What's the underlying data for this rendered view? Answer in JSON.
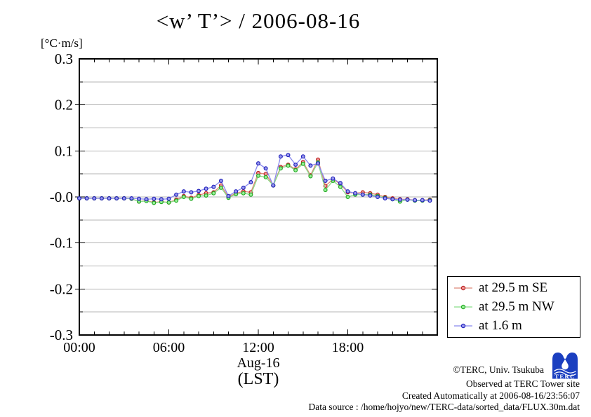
{
  "chart": {
    "title": "<w’ T’> / 2006-08-16",
    "unit_label": "[°C·m/s]",
    "x_label_line1": "Aug-16",
    "x_label_line2": "(LST)"
  },
  "chart_data": {
    "type": "line",
    "title": "<w’ T’> / 2006-08-16",
    "ylabel": "[°C·m/s]",
    "xlabel": "Aug-16 (LST)",
    "ylim": [
      -0.3,
      0.3
    ],
    "xlim_hours": [
      0,
      24
    ],
    "grid": "horizontal, every 0.05, light gray",
    "grid_color": "#b4b4b4",
    "legend_position": "outside-right-bottom",
    "y_major_tick_labels": [
      "0.3",
      "0.2",
      "0.1",
      "-0.0",
      "-0.1",
      "-0.2",
      "-0.3"
    ],
    "y_major_tick_values": [
      0.3,
      0.2,
      0.1,
      0.0,
      -0.1,
      -0.2,
      -0.3
    ],
    "x_major_tick_labels": [
      "00:00",
      "06:00",
      "12:00",
      "18:00"
    ],
    "x_major_tick_hours": [
      0,
      6,
      12,
      18
    ],
    "x_minor_tick_step_hours": 1,
    "x_hours": [
      0,
      0.5,
      1,
      1.5,
      2,
      2.5,
      3,
      3.5,
      4,
      4.5,
      5,
      5.5,
      6,
      6.5,
      7,
      7.5,
      8,
      8.5,
      9,
      9.5,
      10,
      10.5,
      11,
      11.5,
      12,
      12.5,
      13,
      13.5,
      14,
      14.5,
      15,
      15.5,
      16,
      16.5,
      17,
      17.5,
      18,
      18.5,
      19,
      19.5,
      20,
      20.5,
      21,
      21.5,
      22,
      22.5,
      23,
      23.5
    ],
    "series": [
      {
        "name": "at 29.5 m SE",
        "line_color": "#dd8877",
        "marker_stroke": "#bb2222",
        "marker_fill": "#ee9999",
        "values": [
          -0.003,
          -0.003,
          -0.003,
          -0.003,
          -0.003,
          -0.003,
          -0.003,
          -0.004,
          -0.01,
          -0.008,
          -0.012,
          -0.01,
          -0.012,
          -0.006,
          0.002,
          -0.002,
          0.004,
          0.008,
          0.01,
          0.025,
          0.0,
          0.008,
          0.012,
          0.01,
          0.052,
          0.05,
          0.025,
          0.065,
          0.07,
          0.06,
          0.076,
          0.047,
          0.081,
          0.024,
          0.038,
          0.028,
          0.01,
          0.008,
          0.01,
          0.008,
          0.005,
          0.0,
          -0.003,
          -0.005,
          -0.005,
          -0.007,
          -0.007,
          -0.006
        ]
      },
      {
        "name": "at 29.5 m NW",
        "line_color": "#88dd88",
        "marker_stroke": "#22aa22",
        "marker_fill": "#99ee99",
        "values": [
          -0.003,
          -0.003,
          -0.003,
          -0.003,
          -0.003,
          -0.003,
          -0.003,
          -0.004,
          -0.01,
          -0.009,
          -0.013,
          -0.011,
          -0.012,
          -0.008,
          0.0,
          -0.004,
          0.002,
          0.003,
          0.008,
          0.02,
          -0.002,
          0.006,
          0.008,
          0.005,
          0.046,
          0.043,
          0.025,
          0.062,
          0.068,
          0.058,
          0.072,
          0.045,
          0.075,
          0.015,
          0.035,
          0.022,
          0.0,
          0.005,
          0.005,
          0.005,
          0.002,
          -0.002,
          -0.005,
          -0.01,
          -0.006,
          -0.008,
          -0.008,
          -0.007
        ]
      },
      {
        "name": "at 1.6 m",
        "line_color": "#8888ee",
        "marker_stroke": "#2222bb",
        "marker_fill": "#9999ee",
        "values": [
          -0.003,
          -0.003,
          -0.003,
          -0.003,
          -0.003,
          -0.003,
          -0.003,
          -0.003,
          -0.004,
          -0.005,
          -0.004,
          -0.005,
          -0.004,
          0.005,
          0.012,
          0.01,
          0.013,
          0.018,
          0.022,
          0.035,
          0.002,
          0.012,
          0.02,
          0.032,
          0.073,
          0.062,
          0.025,
          0.088,
          0.091,
          0.07,
          0.088,
          0.068,
          0.073,
          0.035,
          0.04,
          0.03,
          0.012,
          0.008,
          0.005,
          0.003,
          0.0,
          -0.003,
          -0.005,
          -0.006,
          -0.006,
          -0.007,
          -0.007,
          -0.008
        ]
      }
    ]
  },
  "footer": {
    "line1": "©TERC, Univ. Tsukuba",
    "line2": "Observed at TERC Tower site",
    "line3": "Created Automatically at 2006-08-16/23:56:07",
    "line4": "Data source : /home/hojyo/new/TERC-data/sorted_data/FLUX.30m.dat",
    "logo_text": "TERC",
    "logo_color": "#1b3fc0"
  }
}
